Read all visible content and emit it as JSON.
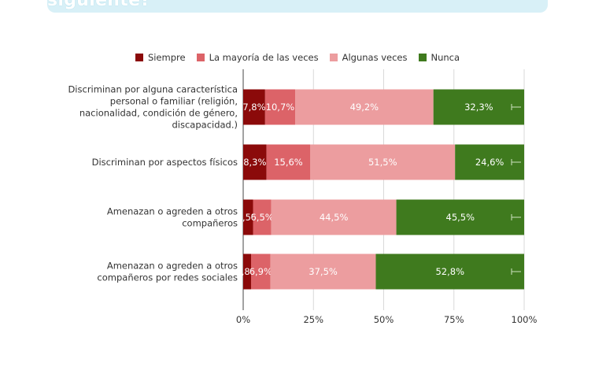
{
  "banner_title": "¿Con qué frecuencia en tu escuela pasa lo siguiente?",
  "chart_data": {
    "type": "bar",
    "orientation": "horizontal",
    "stacked": true,
    "categories": [
      [
        "Discriminan por alguna característica",
        "personal o familiar (religión,",
        "nacionalidad, condición de género,",
        "discapacidad.)"
      ],
      [
        "Discriminan por aspectos físicos"
      ],
      [
        "Amenazan o agreden a otros",
        "compañeros"
      ],
      [
        "Amenazan o agreden a otros",
        "compañeros por redes sociales"
      ]
    ],
    "series": [
      {
        "name": "Siempre",
        "color": "#8b0a0a",
        "values": [
          7.8,
          8.3,
          3.5,
          2.8
        ],
        "labels": [
          "7,8%",
          "8,3%",
          "3,5%",
          "2,8%"
        ]
      },
      {
        "name": "La mayoría de las veces",
        "color": "#dc6368",
        "values": [
          10.7,
          15.6,
          6.5,
          6.9
        ],
        "labels": [
          "10,7%",
          "15,6%",
          "6,5%",
          "6,9%"
        ]
      },
      {
        "name": "Algunas veces",
        "color": "#ec9d9f",
        "values": [
          49.2,
          51.5,
          44.5,
          37.5
        ],
        "labels": [
          "49,2%",
          "51,5%",
          "44,5%",
          "37,5%"
        ]
      },
      {
        "name": "Nunca",
        "color": "#3f7a1e",
        "values": [
          32.3,
          24.6,
          45.5,
          52.8
        ],
        "labels": [
          "32,3%",
          "24,6%",
          "45,5%",
          "52,8%"
        ]
      }
    ],
    "xlim": [
      0,
      100
    ],
    "xticks": [
      0,
      25,
      50,
      75,
      100
    ],
    "xtick_labels": [
      "0%",
      "25%",
      "50%",
      "75%",
      "100%"
    ],
    "grid": true,
    "legend_position": "top"
  }
}
